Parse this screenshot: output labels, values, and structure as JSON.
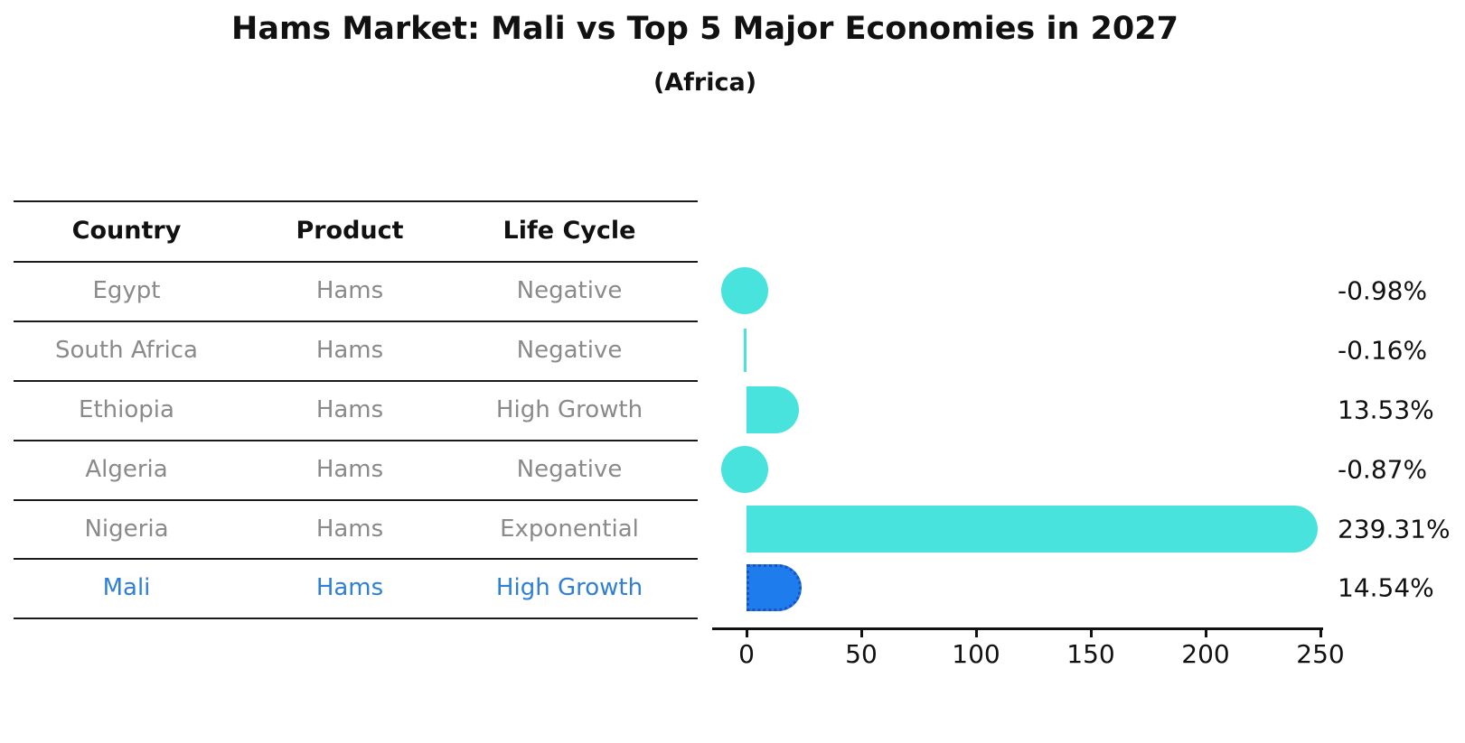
{
  "title": "Hams Market: Mali vs Top 5 Major Economies in 2027",
  "subtitle": "(Africa)",
  "table": {
    "headers": [
      "Country",
      "Product",
      "Life Cycle"
    ],
    "rows": [
      {
        "country": "Egypt",
        "product": "Hams",
        "life_cycle": "Negative"
      },
      {
        "country": "South Africa",
        "product": "Hams",
        "life_cycle": "Negative"
      },
      {
        "country": "Ethiopia",
        "product": "Hams",
        "life_cycle": "High Growth"
      },
      {
        "country": "Algeria",
        "product": "Hams",
        "life_cycle": "Negative"
      },
      {
        "country": "Nigeria",
        "product": "Hams",
        "life_cycle": "Exponential"
      },
      {
        "country": "Mali",
        "product": "Hams",
        "life_cycle": "High Growth"
      }
    ],
    "highlight_row": 5
  },
  "chart_data": {
    "type": "bar",
    "orientation": "horizontal",
    "categories": [
      "Egypt",
      "South Africa",
      "Ethiopia",
      "Algeria",
      "Nigeria",
      "Mali"
    ],
    "values": [
      -0.98,
      -0.16,
      13.53,
      -0.87,
      239.31,
      14.54
    ],
    "value_labels": [
      "-0.98%",
      "-0.16%",
      "13.53%",
      "-0.87%",
      "239.31%",
      "14.54%"
    ],
    "x_ticks": [
      0,
      50,
      100,
      150,
      200,
      250
    ],
    "xlim": [
      -10,
      250
    ],
    "grid": false,
    "legend": false,
    "highlight_index": 5,
    "colors": {
      "bar": "#49E3DE",
      "highlight_bar": "#1E7CEC",
      "highlight_border": "#1A52C6",
      "highlight_text": "#2E7FD9",
      "text": "#111111",
      "muted_text": "#8A8A8A"
    }
  }
}
